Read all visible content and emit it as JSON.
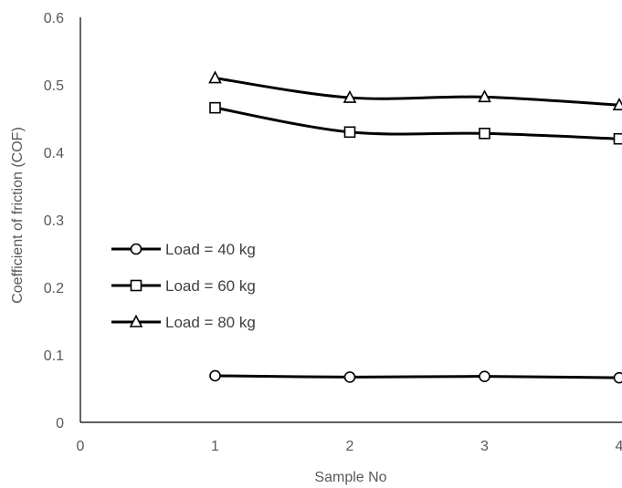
{
  "chart_data": {
    "type": "line",
    "title": "",
    "xlabel": "Sample No",
    "ylabel": "Coefficient of friction (COF)",
    "xlim": [
      0,
      4
    ],
    "ylim": [
      0,
      0.6
    ],
    "x_ticks": [
      "0",
      "1",
      "2",
      "3",
      "4"
    ],
    "y_ticks": [
      "0",
      "0.1",
      "0.2",
      "0.3",
      "0.4",
      "0.5",
      "0.6"
    ],
    "grid": false,
    "legend_position": "left",
    "x": [
      1,
      2,
      3,
      4
    ],
    "series": [
      {
        "name": "Load = 40 kg",
        "marker": "circle",
        "color": "#000000",
        "values": [
          0.069,
          0.067,
          0.068,
          0.066
        ]
      },
      {
        "name": "Load = 60 kg",
        "marker": "square",
        "color": "#000000",
        "values": [
          0.466,
          0.43,
          0.428,
          0.42
        ]
      },
      {
        "name": "Load = 80 kg",
        "marker": "triangle",
        "color": "#000000",
        "values": [
          0.51,
          0.481,
          0.482,
          0.47
        ]
      }
    ]
  }
}
